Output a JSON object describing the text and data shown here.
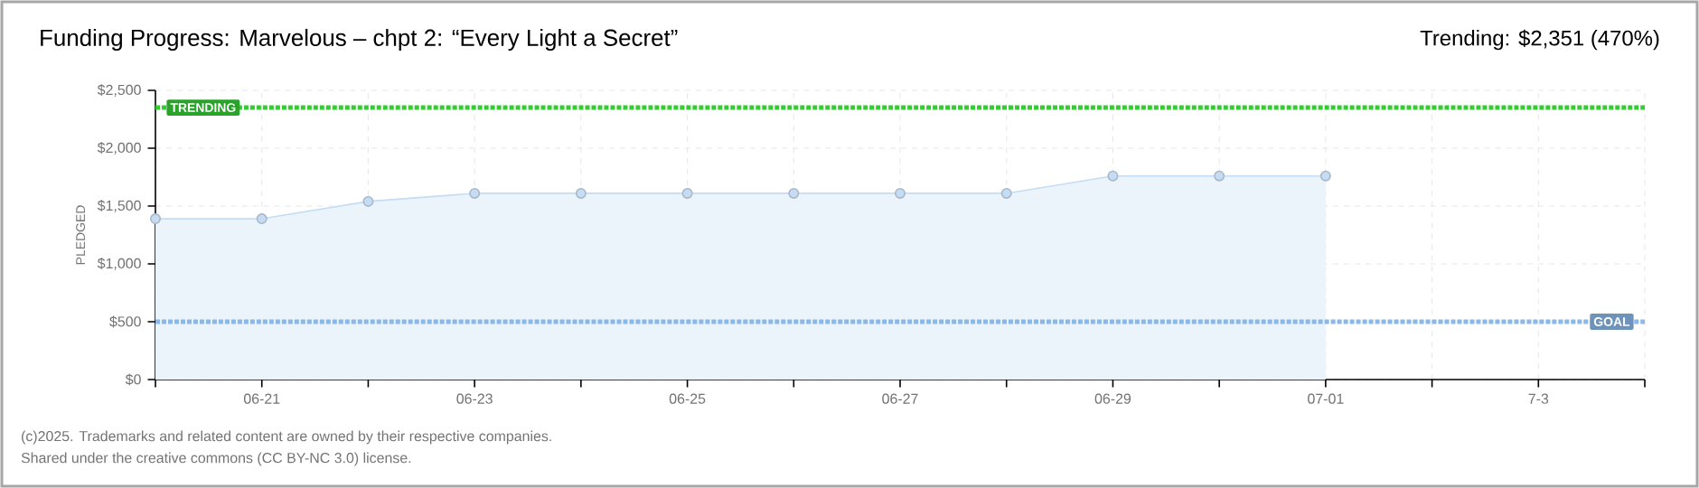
{
  "chart_data": {
    "type": "area",
    "title": "Funding Progress: Marvelous – chpt 2: “Every Light a Secret”",
    "ylabel": "PLEDGED",
    "annotations": [
      "Trending: $2,351 (470%)",
      "(c)2025. Trademarks and related content are owned by their respective companies.",
      "Shared under the creative commons (CC BY-NC 3.0) license."
    ],
    "x": [
      "2025-06-20",
      "2025-06-21",
      "2025-06-22",
      "2025-06-23",
      "2025-06-24",
      "2025-06-25",
      "2025-06-26",
      "2025-06-27",
      "2025-06-28",
      "2025-06-29",
      "2025-06-30",
      "2025-07-01"
    ],
    "series": [
      {
        "color": "#c5dcf5",
        "values": [
          1390,
          1390,
          1540,
          1610,
          1610,
          1610,
          1610,
          1610,
          1610,
          1760,
          1760,
          1760
        ]
      }
    ],
    "xlim": [
      "2025-06-20",
      "2025-07-04"
    ],
    "xticks": [
      {
        "value": "2025-06-20",
        "label": null
      },
      {
        "value": "2025-06-21",
        "label": "06-21"
      },
      {
        "value": "2025-06-22",
        "label": null
      },
      {
        "value": "2025-06-23",
        "label": "06-23"
      },
      {
        "value": "2025-06-24",
        "label": null
      },
      {
        "value": "2025-06-25",
        "label": "06-25"
      },
      {
        "value": "2025-06-26",
        "label": null
      },
      {
        "value": "2025-06-27",
        "label": "06-27"
      },
      {
        "value": "2025-06-28",
        "label": null
      },
      {
        "value": "2025-06-29",
        "label": "06-29"
      },
      {
        "value": "2025-06-30",
        "label": null
      },
      {
        "value": "2025-07-01",
        "label": "07-01"
      },
      {
        "value": "2025-07-02",
        "label": null
      },
      {
        "value": "2025-07-03",
        "label": "7-3"
      },
      {
        "value": "2025-07-04",
        "label": null
      }
    ],
    "ylim": [
      0,
      2500
    ],
    "yticks": [
      {
        "value": 0,
        "label": "$0"
      },
      {
        "value": 500,
        "label": "$500"
      },
      {
        "value": 1000,
        "label": "$1,000"
      },
      {
        "value": 1500,
        "label": "$1,500"
      },
      {
        "value": 2000,
        "label": "$2,000"
      },
      {
        "value": 2500,
        "label": "$2,500"
      }
    ],
    "ref_lines": [
      {
        "axis": "y",
        "value": 2351,
        "label": "TRENDING",
        "color": "#33cc33",
        "line_style": "dotted"
      },
      {
        "axis": "y",
        "value": 500,
        "label": "GOAL",
        "color": "#8ab8e8",
        "line_style": "dotted"
      }
    ],
    "grid": true,
    "marker": "circle",
    "line_style": "solid"
  }
}
